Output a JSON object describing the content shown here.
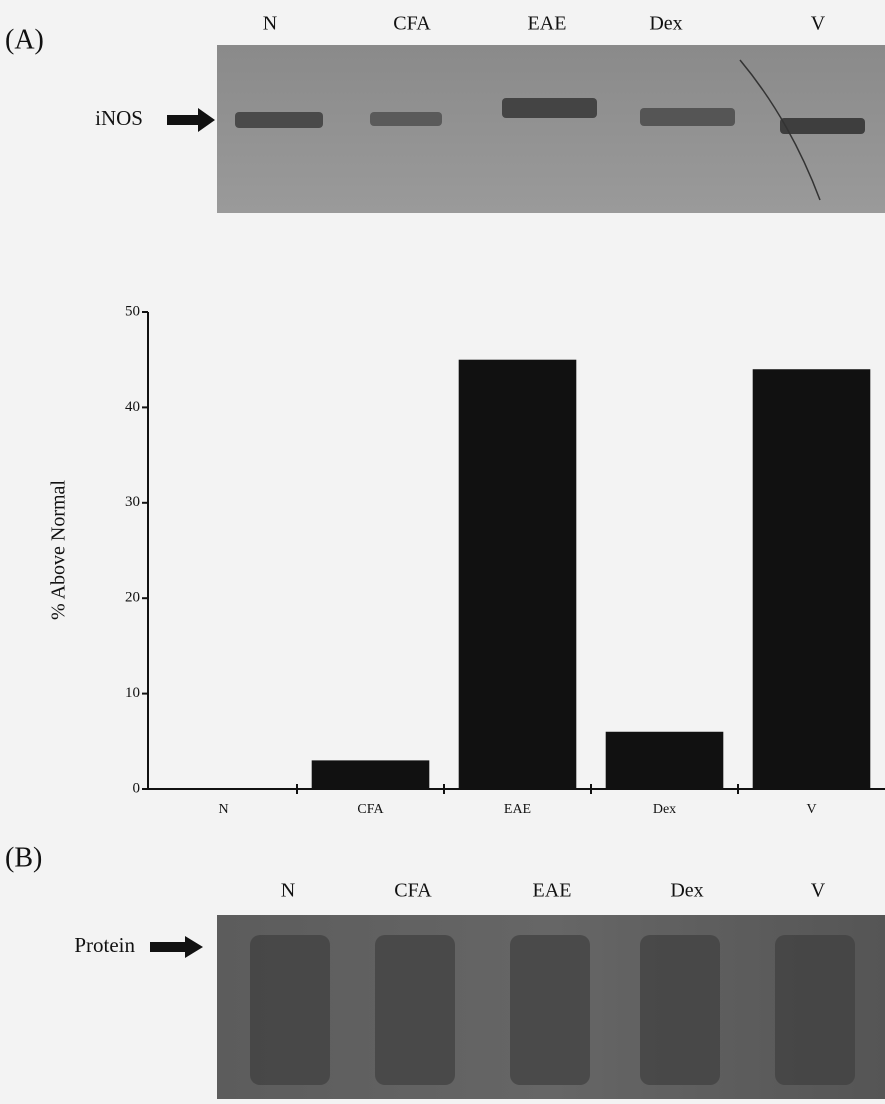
{
  "panel_a": {
    "label": "(A)",
    "gel": {
      "lanes": [
        "N",
        "CFA",
        "EAE",
        "Dex",
        "V"
      ],
      "band": "iNOS"
    }
  },
  "chart_data": {
    "type": "bar",
    "y_label": "% Above Normal",
    "categories": [
      "N",
      "CFA",
      "EAE",
      "Dex",
      "V"
    ],
    "values": [
      0,
      3,
      45,
      6,
      44
    ],
    "color": "#111111",
    "ylim": [
      0,
      50
    ],
    "yticks": [
      0,
      10,
      20,
      30,
      40,
      50
    ]
  },
  "panel_b": {
    "label": "(B)",
    "gel": {
      "lanes": [
        "N",
        "CFA",
        "EAE",
        "Dex",
        "V"
      ],
      "band": "Protein"
    }
  }
}
